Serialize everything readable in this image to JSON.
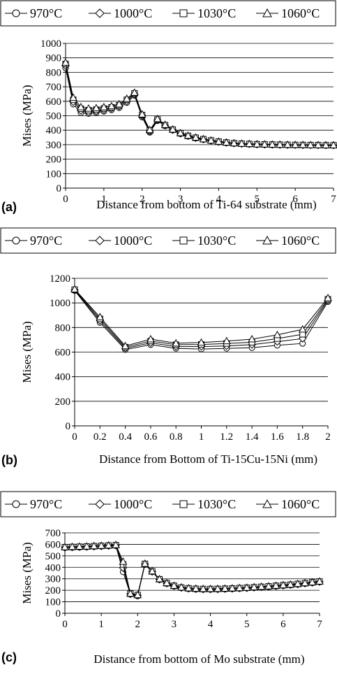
{
  "chart_data": [
    {
      "panel": "(a)",
      "type": "line",
      "xlabel": "Distance from bottom of Ti-64 substrate (mm)",
      "ylabel": "Mises (MPa)",
      "xlim": [
        0,
        7
      ],
      "ylim": [
        0,
        1000
      ],
      "xticks": [
        "0",
        "1",
        "2",
        "3",
        "4",
        "5",
        "6",
        "7"
      ],
      "yticks": [
        "0",
        "100",
        "200",
        "300",
        "400",
        "500",
        "600",
        "700",
        "800",
        "900",
        "1000"
      ],
      "grid": "horizontal",
      "legend": "top",
      "x": [
        0,
        0.2,
        0.4,
        0.6,
        0.8,
        1.0,
        1.2,
        1.4,
        1.6,
        1.8,
        2.0,
        2.2,
        2.4,
        2.6,
        2.8,
        3.0,
        3.2,
        3.4,
        3.6,
        3.8,
        4.0,
        4.2,
        4.4,
        4.6,
        4.8,
        5.0,
        5.2,
        5.4,
        5.6,
        5.8,
        6.0,
        6.2,
        6.4,
        6.6,
        6.8,
        7.0
      ],
      "series": [
        {
          "name": "970°C",
          "marker": "circle",
          "values": [
            830,
            580,
            520,
            515,
            520,
            530,
            540,
            555,
            590,
            640,
            490,
            385,
            465,
            430,
            400,
            375,
            358,
            345,
            335,
            326,
            318,
            312,
            308,
            305,
            303,
            301,
            300,
            299,
            298,
            298,
            297,
            297,
            296,
            296,
            295,
            295
          ]
        },
        {
          "name": "1000°C",
          "marker": "diamond",
          "values": [
            845,
            595,
            535,
            525,
            530,
            540,
            550,
            565,
            600,
            648,
            500,
            392,
            470,
            432,
            402,
            377,
            360,
            347,
            337,
            328,
            320,
            314,
            309,
            306,
            304,
            302,
            301,
            300,
            299,
            298,
            298,
            297,
            297,
            296,
            296,
            296
          ]
        },
        {
          "name": "1030°C",
          "marker": "square",
          "values": [
            858,
            610,
            548,
            538,
            542,
            550,
            558,
            572,
            610,
            655,
            505,
            398,
            474,
            435,
            404,
            379,
            361,
            348,
            338,
            329,
            321,
            315,
            310,
            307,
            305,
            303,
            302,
            301,
            300,
            299,
            298,
            298,
            297,
            297,
            296,
            296
          ]
        },
        {
          "name": "1060°C",
          "marker": "triangle",
          "values": [
            868,
            625,
            560,
            550,
            553,
            560,
            567,
            580,
            618,
            660,
            510,
            402,
            478,
            438,
            406,
            381,
            363,
            350,
            339,
            330,
            322,
            316,
            311,
            308,
            306,
            304,
            303,
            302,
            301,
            300,
            299,
            299,
            298,
            298,
            297,
            297
          ]
        }
      ]
    },
    {
      "panel": "(b)",
      "type": "line",
      "xlabel": "Distance from  Bottom of Ti-15Cu-15Ni (mm)",
      "ylabel": "Mises (MPa)",
      "xlim": [
        0,
        2
      ],
      "ylim": [
        0,
        1200
      ],
      "xticks": [
        "0",
        "0.2",
        "0.4",
        "0.6",
        "0.8",
        "1",
        "1.2",
        "1.4",
        "1.6",
        "1.8",
        "2"
      ],
      "yticks": [
        "0",
        "200",
        "400",
        "600",
        "800",
        "1000",
        "1200"
      ],
      "grid": "horizontal",
      "legend": "top",
      "x": [
        0,
        0.2,
        0.4,
        0.6,
        0.8,
        1.0,
        1.2,
        1.4,
        1.6,
        1.8,
        2.0
      ],
      "series": [
        {
          "name": "970°C",
          "marker": "circle",
          "values": [
            1100,
            840,
            620,
            660,
            630,
            625,
            630,
            635,
            655,
            670,
            1010
          ]
        },
        {
          "name": "1000°C",
          "marker": "diamond",
          "values": [
            1105,
            855,
            630,
            675,
            645,
            645,
            650,
            660,
            685,
            710,
            1020
          ]
        },
        {
          "name": "1030°C",
          "marker": "square",
          "values": [
            1108,
            870,
            640,
            690,
            660,
            662,
            670,
            680,
            710,
            745,
            1030
          ]
        },
        {
          "name": "1060°C",
          "marker": "triangle",
          "values": [
            1112,
            885,
            650,
            705,
            672,
            678,
            690,
            705,
            740,
            785,
            1040
          ]
        }
      ]
    },
    {
      "panel": "(c)",
      "type": "line",
      "xlabel": "Distance from bottom of Mo substrate (mm)",
      "ylabel": "Mises (MPa)",
      "xlim": [
        0,
        7
      ],
      "ylim": [
        0,
        700
      ],
      "xticks": [
        "0",
        "1",
        "2",
        "3",
        "4",
        "5",
        "6",
        "7"
      ],
      "yticks": [
        "0",
        "100",
        "200",
        "300",
        "400",
        "500",
        "600",
        "700"
      ],
      "grid": "horizontal",
      "legend": "top",
      "x": [
        0,
        0.2,
        0.4,
        0.6,
        0.8,
        1.0,
        1.2,
        1.4,
        1.6,
        1.8,
        2.0,
        2.2,
        2.4,
        2.6,
        2.8,
        3.0,
        3.2,
        3.4,
        3.6,
        3.8,
        4.0,
        4.2,
        4.4,
        4.6,
        4.8,
        5.0,
        5.2,
        5.4,
        5.6,
        5.8,
        6.0,
        6.2,
        6.4,
        6.6,
        6.8,
        7.0
      ],
      "series": [
        {
          "name": "970°C",
          "marker": "circle",
          "values": [
            570,
            572,
            574,
            576,
            579,
            582,
            585,
            588,
            360,
            165,
            150,
            425,
            360,
            292,
            258,
            235,
            220,
            213,
            209,
            207,
            207,
            208,
            210,
            212,
            215,
            218,
            222,
            226,
            230,
            235,
            240,
            245,
            251,
            258,
            265,
            272
          ]
        },
        {
          "name": "1000°C",
          "marker": "diamond",
          "values": [
            573,
            575,
            577,
            579,
            582,
            585,
            588,
            591,
            395,
            168,
            155,
            428,
            363,
            294,
            260,
            237,
            222,
            215,
            211,
            209,
            209,
            210,
            212,
            214,
            217,
            220,
            224,
            228,
            232,
            237,
            242,
            247,
            253,
            260,
            267,
            274
          ]
        },
        {
          "name": "1030°C",
          "marker": "square",
          "values": [
            575,
            577,
            579,
            581,
            584,
            587,
            590,
            593,
            425,
            170,
            158,
            430,
            365,
            296,
            262,
            239,
            224,
            217,
            213,
            211,
            211,
            212,
            214,
            216,
            219,
            222,
            226,
            230,
            234,
            239,
            244,
            249,
            255,
            262,
            269,
            276
          ]
        },
        {
          "name": "1060°C",
          "marker": "triangle",
          "values": [
            577,
            579,
            581,
            583,
            586,
            589,
            592,
            595,
            450,
            172,
            160,
            432,
            367,
            298,
            264,
            241,
            226,
            219,
            215,
            213,
            213,
            214,
            216,
            218,
            221,
            224,
            228,
            232,
            236,
            241,
            246,
            251,
            257,
            264,
            271,
            278
          ]
        }
      ]
    }
  ]
}
